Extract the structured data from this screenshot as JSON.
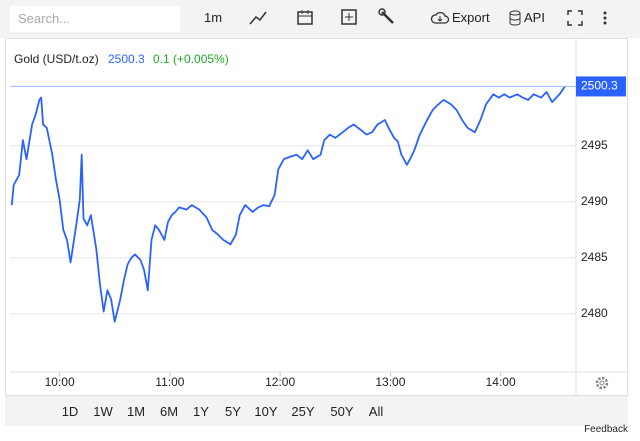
{
  "toolbar": {
    "search_placeholder": "Search...",
    "interval": "1m",
    "export": "Export",
    "api": "API"
  },
  "chart_data": {
    "type": "line",
    "title": "Gold (USD/t.oz)",
    "change": "0.1 (+0.005%)",
    "color": "#2962ff",
    "grid": true,
    "x": [
      "9:34",
      "9:35",
      "9:38",
      "9:40",
      "9:42",
      "9:45",
      "9:47",
      "9:49",
      "9:50",
      "9:51",
      "9:53",
      "9:56",
      "9:58",
      "10:00",
      "10:02",
      "10:04",
      "10:06",
      "10:09",
      "10:11",
      "10:12",
      "10:13",
      "10:15",
      "10:17",
      "10:20",
      "10:22",
      "10:24",
      "10:26",
      "10:28",
      "10:30",
      "10:33",
      "10:35",
      "10:37",
      "10:39",
      "10:41",
      "10:44",
      "10:46",
      "10:48",
      "10:50",
      "10:52",
      "10:54",
      "10:57",
      "10:59",
      "11:01",
      "11:03",
      "11:05",
      "11:09",
      "11:12",
      "11:16",
      "11:20",
      "11:23",
      "11:26",
      "11:29",
      "11:33",
      "11:36",
      "11:38",
      "11:41",
      "11:45",
      "11:48",
      "11:51",
      "11:54",
      "11:57",
      "11:59",
      "12:02",
      "12:05",
      "12:09",
      "12:12",
      "12:15",
      "12:18",
      "12:22",
      "12:24",
      "12:27",
      "12:30",
      "12:34",
      "12:37",
      "12:40",
      "12:44",
      "12:47",
      "12:50",
      "12:53",
      "12:57",
      "12:59",
      "13:02",
      "13:04",
      "13:06",
      "13:09",
      "13:11",
      "13:13",
      "13:16",
      "13:20",
      "13:23",
      "13:26",
      "13:29",
      "13:33",
      "13:36",
      "13:39",
      "13:42",
      "13:46",
      "13:49",
      "13:52",
      "13:56",
      "13:59",
      "14:02",
      "14:05",
      "14:09",
      "14:12",
      "14:15",
      "14:18",
      "14:22",
      "14:25",
      "14:28",
      "14:32",
      "14:35"
    ],
    "values": [
      2489.7,
      2491.5,
      2492.4,
      2495.5,
      2493.8,
      2496.9,
      2497.8,
      2499.1,
      2499.3,
      2496.9,
      2496.6,
      2494.2,
      2492.0,
      2490.2,
      2487.5,
      2486.6,
      2484.6,
      2487.9,
      2490.2,
      2494.2,
      2488.5,
      2487.9,
      2488.8,
      2485.7,
      2482.6,
      2480.2,
      2482.1,
      2481.3,
      2479.3,
      2481.3,
      2483.0,
      2484.4,
      2485.0,
      2485.3,
      2484.8,
      2483.9,
      2482.1,
      2486.6,
      2487.9,
      2487.5,
      2486.6,
      2488.2,
      2488.8,
      2489.1,
      2489.5,
      2489.3,
      2489.7,
      2489.3,
      2488.6,
      2487.5,
      2487.1,
      2486.6,
      2486.2,
      2487.1,
      2488.8,
      2489.7,
      2489.1,
      2489.5,
      2489.7,
      2489.6,
      2490.6,
      2492.9,
      2493.8,
      2494.0,
      2494.2,
      2493.8,
      2494.6,
      2493.8,
      2494.2,
      2495.5,
      2496.0,
      2495.7,
      2496.2,
      2496.6,
      2496.9,
      2496.4,
      2496.0,
      2496.2,
      2496.9,
      2497.3,
      2496.6,
      2495.7,
      2495.4,
      2494.2,
      2493.3,
      2493.9,
      2494.6,
      2496.0,
      2497.3,
      2498.2,
      2498.7,
      2499.1,
      2498.7,
      2498.2,
      2497.3,
      2496.6,
      2496.2,
      2497.3,
      2498.7,
      2499.6,
      2499.3,
      2499.6,
      2499.3,
      2499.6,
      2499.3,
      2499.1,
      2499.6,
      2499.3,
      2499.8,
      2498.9,
      2499.6,
      2500.3
    ],
    "xlim": [
      "9:33",
      "14:41"
    ],
    "xticks": [
      "10:00",
      "11:00",
      "12:00",
      "13:00",
      "14:00"
    ],
    "ylim": [
      2474.8,
      2504
    ],
    "yticks": [
      2480,
      2485,
      2490,
      2495
    ]
  },
  "ranges": [
    "1D",
    "1W",
    "1M",
    "6M",
    "1Y",
    "5Y",
    "10Y",
    "25Y",
    "50Y",
    "All"
  ],
  "feedback": "Feedback"
}
